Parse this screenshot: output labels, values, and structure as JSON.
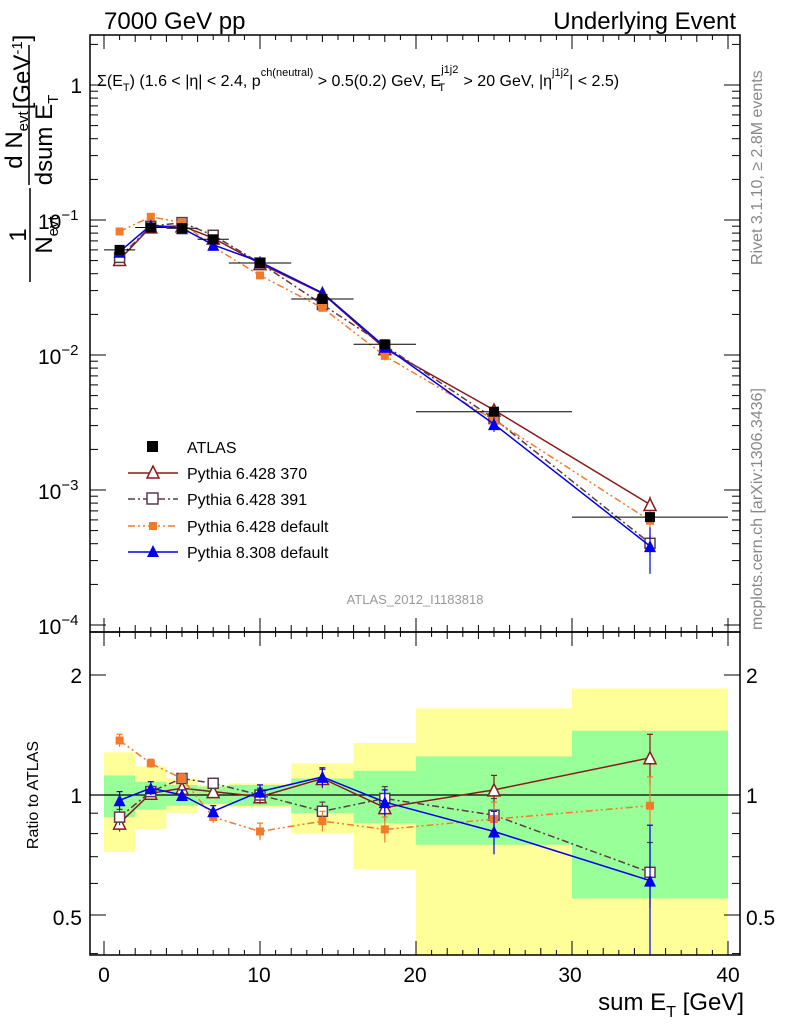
{
  "header": {
    "left": "7000 GeV pp",
    "right": "Underlying Event"
  },
  "plot_label": {
    "sigma": "Σ(E",
    "sigma_sub": "T",
    "rest": ") (1.6 < |η| < 2.4, p",
    "sup1": "ch(neutral)",
    "rest2": " > 0.5(0.2) GeV, E",
    "sup2": "j1j2",
    "sub2": "T",
    "rest3": " > 20 GeV, |η",
    "sup3": "j1j2",
    "rest4": "| < 2.5)"
  },
  "side_labels": {
    "rivet": "Rivet 3.1.10, ≥ 2.8M events",
    "mcplots": "mcplots.cern.ch [arXiv:1306.3436]"
  },
  "analysis_id": "ATLAS_2012_I1183818",
  "y_axis_label": {
    "one": "1",
    "n": "N",
    "n_sub": "evt",
    "dn": "d N",
    "dn_sub": "evt",
    "dsum": "dsum E",
    "dsum_sub": "T",
    "unit": "[GeV",
    "unit_sup": "-1",
    "unit_close": "]"
  },
  "ratio_ylabel": "Ratio to ATLAS",
  "x_axis_label": {
    "main": "sum E",
    "sub": "T",
    "unit": " [GeV]"
  },
  "main_ytick_labels": {
    "p0": "1",
    "m1_base": "10",
    "m1_exp": "−1",
    "m2_base": "10",
    "m2_exp": "−2",
    "m3_base": "10",
    "m3_exp": "−3",
    "m4_base": "10",
    "m4_exp": "−4"
  },
  "ratio_ytick_labels": [
    "0.5",
    "1",
    "2"
  ],
  "x_tick_labels": [
    "0",
    "10",
    "20",
    "30",
    "40"
  ],
  "legend": [
    "ATLAS",
    "Pythia 6.428 370",
    "Pythia 6.428 391",
    "Pythia 6.428 default",
    "Pythia 8.308 default"
  ],
  "chart_data": {
    "type": "scatter",
    "xlabel": "sum E_T [GeV]",
    "ylabel": "1/N_evt dN_evt/dsum E_T [GeV^-1]",
    "yscale": "log",
    "xlim": [
      -1,
      41
    ],
    "ylim": [
      8e-05,
      2.2
    ],
    "ratio_ylim": [
      0.35,
      2.3
    ],
    "legend_position": "lower-left",
    "data": {
      "name": "ATLAS",
      "x": [
        1,
        3,
        5,
        7,
        10,
        14,
        18,
        25,
        35
      ],
      "xerr": [
        1,
        1,
        1,
        1,
        2,
        2,
        2,
        5,
        5
      ],
      "y": [
        0.06,
        0.088,
        0.087,
        0.072,
        0.048,
        0.026,
        0.012,
        0.0038,
        0.00063
      ],
      "band_inner": [
        0.12,
        0.08,
        0.06,
        0.05,
        0.06,
        0.1,
        0.15,
        0.25,
        0.45
      ],
      "band_outer": [
        0.28,
        0.18,
        0.1,
        0.06,
        0.07,
        0.2,
        0.35,
        0.65,
        0.85
      ]
    },
    "series": [
      {
        "name": "Pythia 6.428 370",
        "color": "#8b1a1a",
        "marker": "open-triangle",
        "dash": "solid",
        "ratio": [
          0.85,
          1.01,
          1.04,
          1.02,
          0.99,
          1.1,
          0.93,
          1.03,
          1.24
        ],
        "ratio_err": [
          0.04,
          0.03,
          0.03,
          0.03,
          0.04,
          0.06,
          0.07,
          0.09,
          0.18
        ]
      },
      {
        "name": "Pythia 6.428 391",
        "color": "#5a3a4a",
        "marker": "open-square",
        "dash": "dashdot",
        "ratio": [
          0.88,
          1.02,
          1.1,
          1.07,
          1.0,
          0.91,
          0.98,
          0.89,
          0.64
        ],
        "ratio_err": [
          0.04,
          0.03,
          0.03,
          0.03,
          0.04,
          0.05,
          0.07,
          0.09,
          0.12
        ]
      },
      {
        "name": "Pythia 6.428 default",
        "color": "#f47a2a",
        "marker": "filled-square",
        "dash": "dashdotdot",
        "ratio": [
          1.37,
          1.2,
          1.1,
          0.88,
          0.81,
          0.86,
          0.82,
          0.87,
          0.94
        ],
        "ratio_err": [
          0.05,
          0.03,
          0.03,
          0.03,
          0.04,
          0.05,
          0.06,
          0.09,
          0.17
        ]
      },
      {
        "name": "Pythia 8.308 default",
        "color": "#0000ee",
        "marker": "filled-triangle",
        "dash": "solid",
        "ratio": [
          0.97,
          1.04,
          1.0,
          0.91,
          1.02,
          1.11,
          0.96,
          0.81,
          0.61
        ],
        "ratio_err": [
          0.05,
          0.04,
          0.03,
          0.03,
          0.04,
          0.06,
          0.07,
          0.1,
          0.23
        ]
      }
    ]
  }
}
